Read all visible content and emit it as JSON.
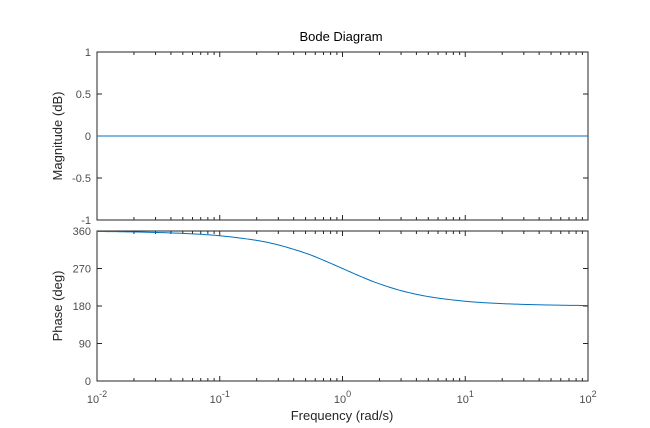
{
  "chart_data": [
    {
      "type": "line",
      "title": "Bode Diagram",
      "xlabel": "",
      "ylabel": "Magnitude (dB)",
      "xscale": "log",
      "xlim": [
        0.01,
        100
      ],
      "ylim": [
        -1,
        1
      ],
      "yticks": [
        -1,
        -0.5,
        0,
        0.5,
        1
      ],
      "ytick_labels": [
        "-1",
        "-0.5",
        "0",
        "0.5",
        "1"
      ],
      "grid": false,
      "series": [
        {
          "x": [
            0.01,
            100
          ],
          "y": [
            0,
            0
          ]
        }
      ]
    },
    {
      "type": "line",
      "title": "",
      "xlabel": "Frequency  (rad/s)",
      "ylabel": "Phase (deg)",
      "xscale": "log",
      "xlim": [
        0.01,
        100
      ],
      "ylim": [
        0,
        360
      ],
      "yticks": [
        0,
        90,
        180,
        270,
        360
      ],
      "ytick_labels": [
        "0",
        "90",
        "180",
        "270",
        "360"
      ],
      "xticks": [
        0.01,
        0.1,
        1,
        10,
        100
      ],
      "xtick_labels": [
        {
          "base": "10",
          "exp": "-2"
        },
        {
          "base": "10",
          "exp": "-1"
        },
        {
          "base": "10",
          "exp": "0"
        },
        {
          "base": "10",
          "exp": "1"
        },
        {
          "base": "10",
          "exp": "2"
        }
      ],
      "grid": false,
      "series": [
        {
          "x": [
            0.01,
            0.02,
            0.05,
            0.1,
            0.2,
            0.3,
            0.5,
            0.7,
            1,
            1.5,
            2,
            3,
            5,
            10,
            20,
            50,
            100
          ],
          "y": [
            358.9,
            357.7,
            354.3,
            348.6,
            337.4,
            326.6,
            306.9,
            289.9,
            270,
            247.4,
            233.1,
            216.9,
            202.6,
            191.4,
            185.7,
            182.3,
            181.1
          ]
        }
      ]
    }
  ],
  "colors": {
    "line": "#0072bd",
    "axis": "#262626",
    "tick_text": "#4d4d4d"
  }
}
